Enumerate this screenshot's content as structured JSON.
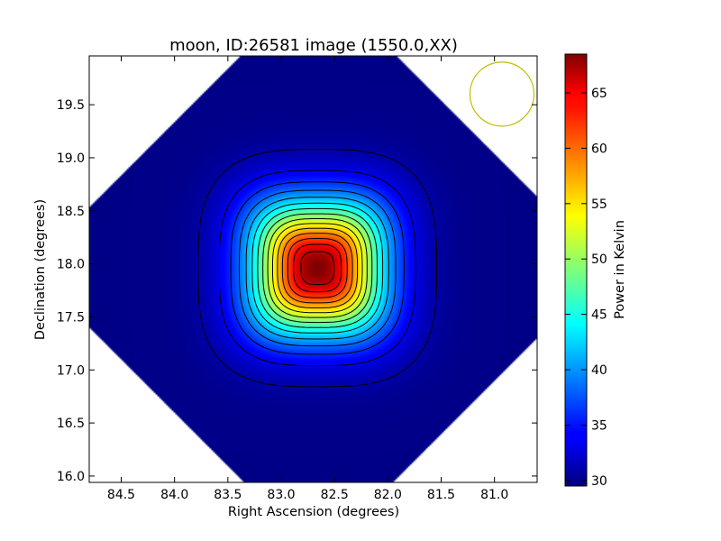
{
  "chart_data": {
    "type": "heatmap",
    "title": "moon, ID:26581 image (1550.0,XX)",
    "xlabel": "Right Ascension (degrees)",
    "ylabel": "Declination (degrees)",
    "xlim": [
      84.8,
      80.6
    ],
    "ylim": [
      15.94,
      19.96
    ],
    "x_ticks": [
      84.5,
      84.0,
      83.5,
      83.0,
      82.5,
      82.0,
      81.5,
      81.0
    ],
    "x_tick_labels": [
      "84.5",
      "84.0",
      "83.5",
      "83.0",
      "82.5",
      "82.0",
      "81.5",
      "81.0"
    ],
    "y_ticks": [
      16.0,
      16.5,
      17.0,
      17.5,
      18.0,
      18.5,
      19.0,
      19.5
    ],
    "y_tick_labels": [
      "16.0",
      "16.5",
      "17.0",
      "17.5",
      "18.0",
      "18.5",
      "19.0",
      "19.5"
    ],
    "source_peak": {
      "ra": 82.66,
      "dec": 17.96,
      "value": 68.5
    },
    "background_level": 29.8,
    "source_width_deg": 0.45,
    "contour_levels": [
      31,
      33.5,
      36,
      38.5,
      41,
      43.5,
      46,
      48.5,
      51,
      53.5,
      56,
      58.5,
      61,
      63.5,
      66
    ],
    "beam_circle": {
      "ra": 80.93,
      "dec": 19.6,
      "radius_deg": 0.3,
      "color": "#bfbf00"
    },
    "colorbar": {
      "label": "Power in Kelvin",
      "min": 29.5,
      "max": 68.5,
      "ticks": [
        30,
        35,
        40,
        45,
        50,
        55,
        60,
        65
      ],
      "tick_labels": [
        "30",
        "35",
        "40",
        "45",
        "50",
        "55",
        "60",
        "65"
      ],
      "colormap": "jet"
    },
    "grid": false
  }
}
